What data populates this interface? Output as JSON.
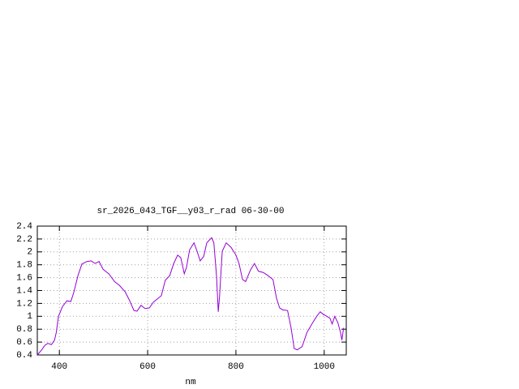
{
  "chart_data": {
    "type": "line",
    "title": "sr_2026_043_TGF__y03_r_rad 06-30-00",
    "x_label": "nm",
    "xlim": [
      350,
      1050
    ],
    "ylim": [
      0.4,
      2.4
    ],
    "xticks": [
      400,
      600,
      800,
      1000
    ],
    "yticks": [
      0.4,
      0.6,
      0.8,
      1,
      1.2,
      1.4,
      1.6,
      1.8,
      2,
      2.2,
      2.4
    ],
    "grid": true,
    "x": [
      350,
      360,
      367,
      374,
      382,
      389,
      393,
      398,
      407,
      417,
      426,
      433,
      442,
      451,
      462,
      472,
      481,
      490,
      499,
      512,
      525,
      536,
      549,
      558,
      569,
      576,
      585,
      594,
      604,
      613,
      622,
      631,
      640,
      650,
      659,
      668,
      675,
      683,
      688,
      695,
      705,
      712,
      719,
      727,
      734,
      745,
      750,
      756,
      760,
      763,
      769,
      778,
      789,
      800,
      807,
      815,
      822,
      833,
      842,
      851,
      862,
      873,
      884,
      892,
      899,
      906,
      917,
      925,
      932,
      939,
      950,
      961,
      972,
      983,
      991,
      998,
      1006,
      1013,
      1018,
      1024,
      1031,
      1037,
      1040,
      1044
    ],
    "series": [
      {
        "color": "#9400d3",
        "values": [
          0.4,
          0.48,
          0.55,
          0.58,
          0.56,
          0.63,
          0.75,
          1.0,
          1.15,
          1.24,
          1.23,
          1.38,
          1.63,
          1.81,
          1.85,
          1.86,
          1.82,
          1.85,
          1.73,
          1.66,
          1.54,
          1.48,
          1.38,
          1.26,
          1.09,
          1.08,
          1.17,
          1.12,
          1.13,
          1.22,
          1.27,
          1.32,
          1.56,
          1.63,
          1.82,
          1.95,
          1.91,
          1.66,
          1.76,
          2.03,
          2.14,
          2.01,
          1.86,
          1.93,
          2.14,
          2.22,
          2.14,
          1.63,
          1.07,
          1.32,
          2.01,
          2.14,
          2.07,
          1.95,
          1.82,
          1.57,
          1.54,
          1.72,
          1.82,
          1.7,
          1.68,
          1.63,
          1.57,
          1.28,
          1.13,
          1.1,
          1.09,
          0.82,
          0.5,
          0.48,
          0.53,
          0.75,
          0.88,
          1.0,
          1.07,
          1.03,
          1.0,
          0.97,
          0.88,
          1.0,
          0.9,
          0.75,
          0.63,
          0.82
        ]
      }
    ]
  }
}
